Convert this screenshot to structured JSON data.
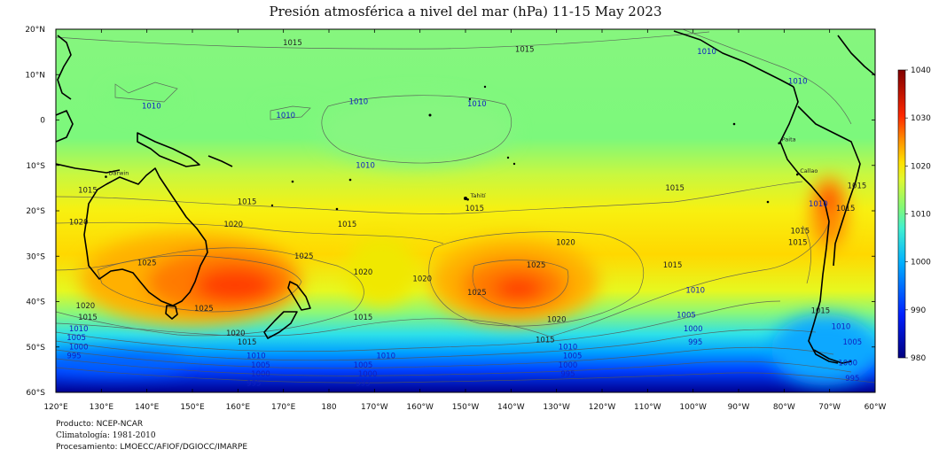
{
  "title": "Presión atmosférica a nivel del mar (hPa) 11-15 May 2023",
  "credits": {
    "product": "Producto: NCEP-NCAR",
    "climatology": "Climatología: 1981-2010",
    "processing": "Procesamiento: LMOECC/AFIOF/DGIOCC/IMARPE"
  },
  "axes": {
    "lon_ticks": [
      "120°E",
      "130°E",
      "140°E",
      "150°E",
      "160°E",
      "170°E",
      "180",
      "170°W",
      "160°W",
      "150°W",
      "140°W",
      "130°W",
      "120°W",
      "110°W",
      "100°W",
      "90°W",
      "80°W",
      "70°W",
      "60°W"
    ],
    "lat_ticks": [
      "20°N",
      "10°N",
      "0",
      "10°S",
      "20°S",
      "30°S",
      "40°S",
      "50°S",
      "60°S"
    ],
    "lon_range": [
      120,
      300
    ],
    "lat_range": [
      -60,
      20
    ]
  },
  "colorbar": {
    "min": 980,
    "max": 1040,
    "labels": [
      "980",
      "990",
      "1000",
      "1010",
      "1020",
      "1030",
      "1040"
    ],
    "stops": [
      {
        "v": 980,
        "c": "#00007f"
      },
      {
        "v": 990,
        "c": "#0026ff"
      },
      {
        "v": 1000,
        "c": "#00b4ff"
      },
      {
        "v": 1005,
        "c": "#3cf0d8"
      },
      {
        "v": 1010,
        "c": "#7cf87c"
      },
      {
        "v": 1016,
        "c": "#d8f83c"
      },
      {
        "v": 1020,
        "c": "#ffe400"
      },
      {
        "v": 1025,
        "c": "#ff8c00"
      },
      {
        "v": 1030,
        "c": "#ff2800"
      },
      {
        "v": 1040,
        "c": "#800000"
      }
    ]
  },
  "place_labels": [
    {
      "name": "Darwin",
      "lon": 131,
      "lat": -12.5
    },
    {
      "name": "Tahití",
      "lon": -149.5,
      "lat": -17.5
    },
    {
      "name": "Paita",
      "lon": -81.1,
      "lat": -5.1
    },
    {
      "name": "Callao",
      "lon": -77.1,
      "lat": -12.0
    }
  ],
  "isobar_labels": [
    {
      "t": "1015",
      "lon": 172,
      "lat": 16.5
    },
    {
      "t": "1015",
      "lon": -137,
      "lat": 15
    },
    {
      "t": "1010",
      "lon": -97,
      "lat": 14.5
    },
    {
      "t": "1010",
      "lon": -77,
      "lat": 8
    },
    {
      "t": "1010",
      "lon": 141,
      "lat": 2.5
    },
    {
      "t": "1010",
      "lon": 170.5,
      "lat": 0.5
    },
    {
      "t": "1010",
      "lon": -173.5,
      "lat": 3.5
    },
    {
      "t": "1010",
      "lon": -147.5,
      "lat": 3
    },
    {
      "t": "1010",
      "lon": -172,
      "lat": -10.5
    },
    {
      "t": "1015",
      "lon": 127,
      "lat": -16
    },
    {
      "t": "1015",
      "lon": 162,
      "lat": -18.5
    },
    {
      "t": "1015",
      "lon": -176,
      "lat": -23.5
    },
    {
      "t": "1015",
      "lon": -148,
      "lat": -20
    },
    {
      "t": "1015",
      "lon": -104,
      "lat": -15.5
    },
    {
      "t": "1015",
      "lon": -77,
      "lat": -27.5
    },
    {
      "t": "1020",
      "lon": 125,
      "lat": -23
    },
    {
      "t": "1020",
      "lon": 159,
      "lat": -23.5
    },
    {
      "t": "1020",
      "lon": -128,
      "lat": -27.5
    },
    {
      "t": "1020",
      "lon": 126.5,
      "lat": -41.5
    },
    {
      "t": "1020",
      "lon": 159.5,
      "lat": -47.5
    },
    {
      "t": "1020",
      "lon": 187.5,
      "lat": -34
    },
    {
      "t": "1020",
      "lon": -159.5,
      "lat": -35.5
    },
    {
      "t": "1020",
      "lon": -130,
      "lat": -44.5
    },
    {
      "t": "1025",
      "lon": 140,
      "lat": -32
    },
    {
      "t": "1025",
      "lon": 174.5,
      "lat": -30.5
    },
    {
      "t": "1025",
      "lon": 152.5,
      "lat": -42
    },
    {
      "t": "1025",
      "lon": -134.5,
      "lat": -32.5
    },
    {
      "t": "1025",
      "lon": -147.5,
      "lat": -38.5
    },
    {
      "t": "1015",
      "lon": 127,
      "lat": -44
    },
    {
      "t": "1010",
      "lon": 125,
      "lat": -46.5
    },
    {
      "t": "1005",
      "lon": 124.5,
      "lat": -48.5
    },
    {
      "t": "1000",
      "lon": 125,
      "lat": -50.5
    },
    {
      "t": "995",
      "lon": 124,
      "lat": -52.5
    },
    {
      "t": "1015",
      "lon": 162,
      "lat": -49.5
    },
    {
      "t": "1010",
      "lon": 164,
      "lat": -52.5
    },
    {
      "t": "1005",
      "lon": 165,
      "lat": -54.5
    },
    {
      "t": "1000",
      "lon": 165,
      "lat": -56.5
    },
    {
      "t": "995",
      "lon": 163.5,
      "lat": -58.5
    },
    {
      "t": "1015",
      "lon": -172.5,
      "lat": -44
    },
    {
      "t": "1010",
      "lon": -167.5,
      "lat": -52.5
    },
    {
      "t": "1005",
      "lon": -172.5,
      "lat": -54.5
    },
    {
      "t": "1000",
      "lon": -171.5,
      "lat": -56.5
    },
    {
      "t": "995",
      "lon": -172.5,
      "lat": -58.5
    },
    {
      "t": "1015",
      "lon": -132.5,
      "lat": -49
    },
    {
      "t": "1010",
      "lon": -127.5,
      "lat": -50.5
    },
    {
      "t": "1005",
      "lon": -126.5,
      "lat": -52.5
    },
    {
      "t": "1000",
      "lon": -127.5,
      "lat": -54.5
    },
    {
      "t": "995",
      "lon": -127.5,
      "lat": -56.5
    },
    {
      "t": "1015",
      "lon": -104.5,
      "lat": -32.5
    },
    {
      "t": "1010",
      "lon": -99.5,
      "lat": -38
    },
    {
      "t": "1005",
      "lon": -101.5,
      "lat": -43.5
    },
    {
      "t": "1000",
      "lon": -100,
      "lat": -46.5
    },
    {
      "t": "995",
      "lon": -99.5,
      "lat": -49.5
    },
    {
      "t": "1015",
      "lon": -72,
      "lat": -42.5
    },
    {
      "t": "1010",
      "lon": -67.5,
      "lat": -46
    },
    {
      "t": "1005",
      "lon": -65,
      "lat": -49.5
    },
    {
      "t": "1000",
      "lon": -66,
      "lat": -54
    },
    {
      "t": "995",
      "lon": -65,
      "lat": -57.5
    },
    {
      "t": "1015",
      "lon": -64,
      "lat": -15
    },
    {
      "t": "1015",
      "lon": -76.5,
      "lat": -25
    },
    {
      "t": "1010",
      "lon": -72.5,
      "lat": -19
    },
    {
      "t": "1015",
      "lon": -66.5,
      "lat": -20
    }
  ]
}
